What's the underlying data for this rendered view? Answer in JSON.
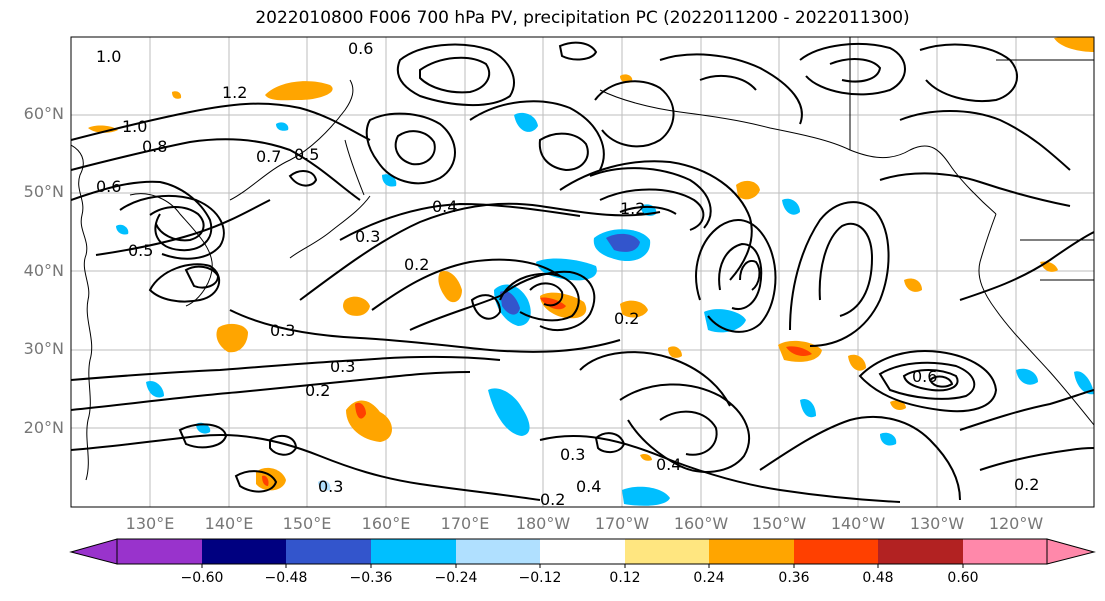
{
  "title": "2022010800 F006 700 hPa PV, precipitation PC (2022011200 - 2022011300)",
  "lat_labels": [
    "60°N",
    "50°N",
    "40°N",
    "30°N",
    "20°N"
  ],
  "lon_labels": [
    "130°E",
    "140°E",
    "150°E",
    "160°E",
    "170°E",
    "180°W",
    "170°W",
    "160°W",
    "150°W",
    "140°W",
    "130°W",
    "120°W"
  ],
  "contour_labels": [
    "1.0",
    "0.8",
    "0.6",
    "1.2",
    "0.7",
    "0.5",
    "0.6",
    "0.5",
    "1.0",
    "0.4",
    "0.3",
    "0.2",
    "0.3",
    "0.2",
    "0.3",
    "0.4",
    "0.2",
    "0.3",
    "0.3",
    "0.2",
    "0.6",
    "1.2",
    "0.4",
    "0.2"
  ],
  "colorbar": {
    "tick_labels": [
      "−0.60",
      "−0.48",
      "−0.36",
      "−0.24",
      "−0.12",
      "0.12",
      "0.24",
      "0.36",
      "0.48",
      "0.60"
    ],
    "colors": [
      "#9933cc",
      "#000080",
      "#3355cc",
      "#00bfff",
      "#b0e0ff",
      "#ffffff",
      "#ffe680",
      "#ffa500",
      "#ff4000",
      "#b22222",
      "#ff88aa"
    ]
  }
}
